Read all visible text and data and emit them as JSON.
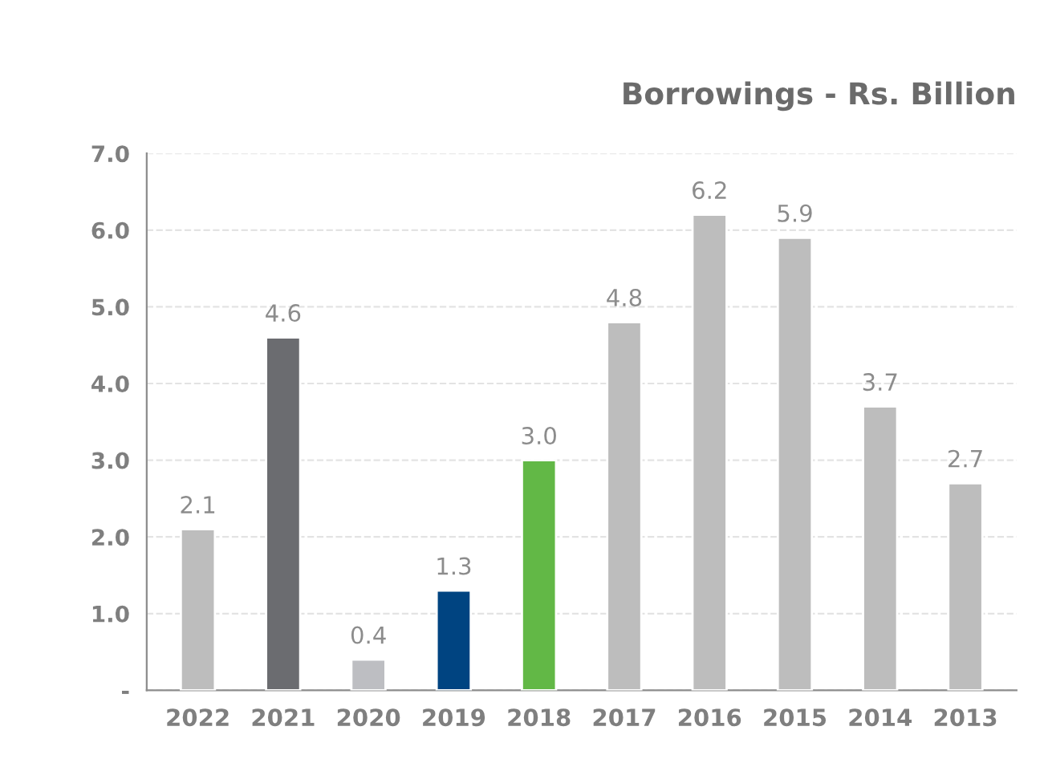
{
  "chart_data": {
    "type": "bar",
    "title": "Borrowings - Rs. Billion",
    "categories": [
      "2022",
      "2021",
      "2020",
      "2019",
      "2018",
      "2017",
      "2016",
      "2015",
      "2014",
      "2013"
    ],
    "values": [
      2.1,
      4.6,
      0.4,
      1.3,
      3.0,
      4.8,
      6.2,
      5.9,
      3.7,
      2.7
    ],
    "colors": [
      "#bdbdbd",
      "#6b6c70",
      "#bdbec2",
      "#004481",
      "#62b846",
      "#bdbdbd",
      "#bdbdbd",
      "#bdbdbd",
      "#bdbdbd",
      "#bdbdbd"
    ],
    "ylim": [
      0,
      7.0
    ],
    "yticks": [
      {
        "value": 0,
        "label": "-"
      },
      {
        "value": 1.0,
        "label": "1.0"
      },
      {
        "value": 2.0,
        "label": "2.0"
      },
      {
        "value": 3.0,
        "label": "3.0"
      },
      {
        "value": 4.0,
        "label": "4.0"
      },
      {
        "value": 5.0,
        "label": "5.0"
      },
      {
        "value": 6.0,
        "label": "6.0"
      },
      {
        "value": 7.0,
        "label": "7.0"
      }
    ],
    "value_labels": [
      "2.1",
      "4.6",
      "0.4",
      "1.3",
      "3.0",
      "4.8",
      "6.2",
      "5.9",
      "3.7",
      "2.7"
    ],
    "grid": "y"
  }
}
